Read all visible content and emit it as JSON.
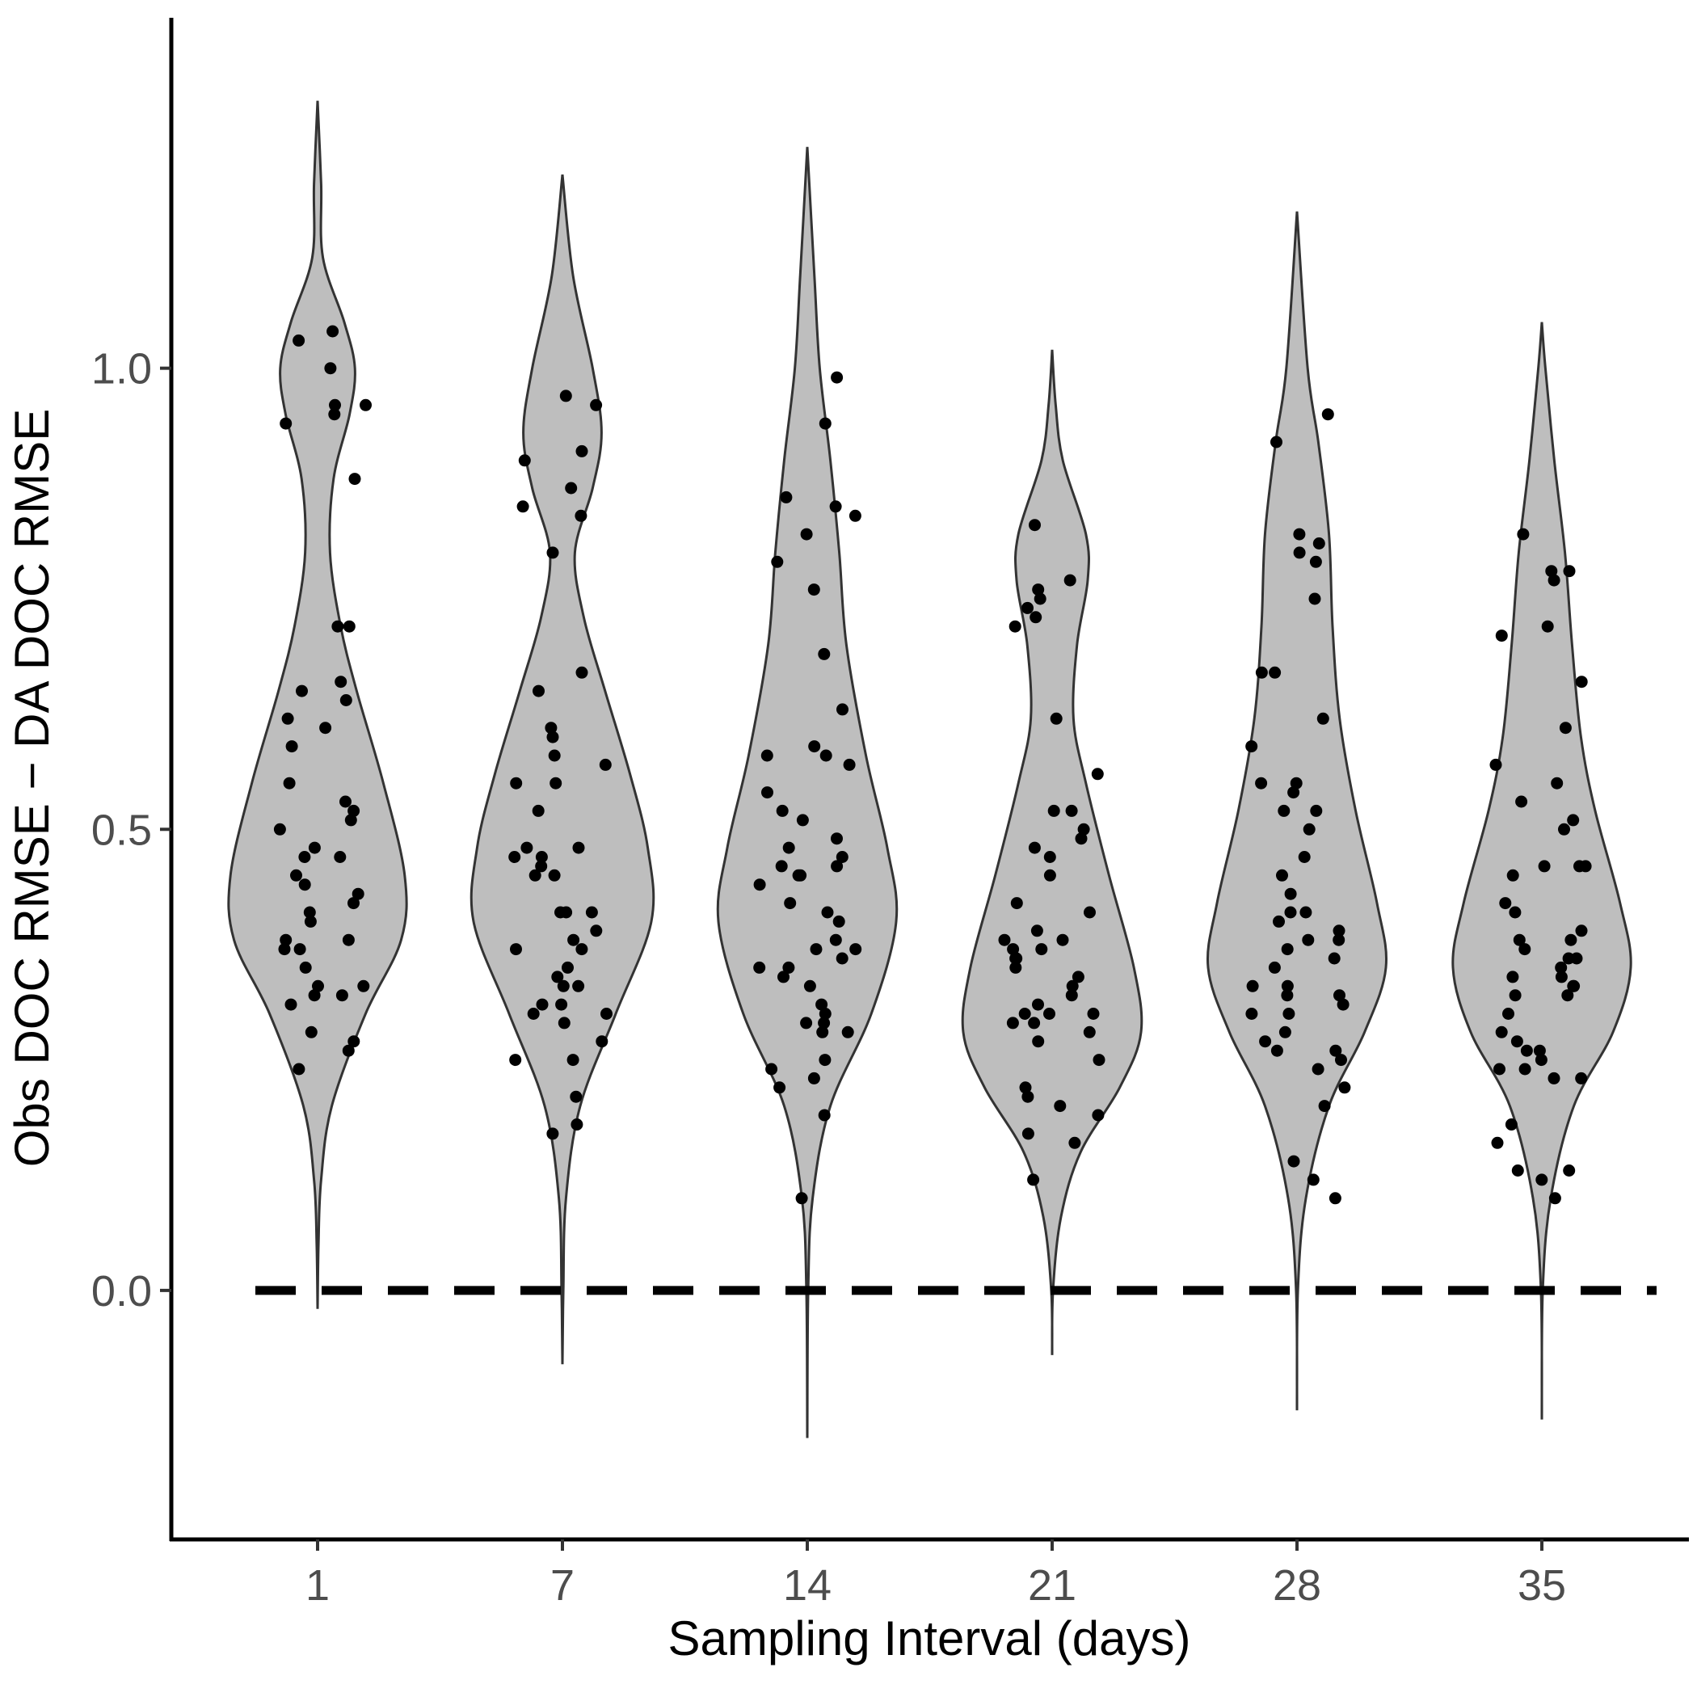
{
  "chart_data": {
    "type": "violin",
    "xlabel": "Sampling Interval (days)",
    "ylabel": "Obs DOC RMSE − DA DOC RMSE",
    "categories": [
      "1",
      "7",
      "14",
      "21",
      "28",
      "35"
    ],
    "ylim": [
      -0.27,
      1.38
    ],
    "yticks": [
      0.0,
      0.5,
      1.0
    ],
    "ytick_labels": [
      "0.0",
      "0.5",
      "1.0"
    ],
    "reference_line": {
      "y": 0.0,
      "style": "dashed"
    },
    "grid": false,
    "legend": "none",
    "colors": {
      "violin_fill": "#bebebe",
      "violin_stroke": "#333333",
      "points": "#000000",
      "axis": "#000000"
    },
    "violins": [
      {
        "category": "1",
        "min": -0.02,
        "max": 1.29,
        "profile": [
          [
            -0.02,
            0.0
          ],
          [
            0.05,
            0.005
          ],
          [
            0.12,
            0.02
          ],
          [
            0.2,
            0.08
          ],
          [
            0.3,
            0.27
          ],
          [
            0.38,
            0.47
          ],
          [
            0.45,
            0.49
          ],
          [
            0.55,
            0.37
          ],
          [
            0.65,
            0.22
          ],
          [
            0.72,
            0.13
          ],
          [
            0.8,
            0.07
          ],
          [
            0.88,
            0.09
          ],
          [
            0.95,
            0.18
          ],
          [
            1.0,
            0.21
          ],
          [
            1.05,
            0.15
          ],
          [
            1.12,
            0.03
          ],
          [
            1.2,
            0.02
          ],
          [
            1.29,
            0.0
          ]
        ]
      },
      {
        "category": "7",
        "min": -0.08,
        "max": 1.21,
        "profile": [
          [
            -0.08,
            0.0
          ],
          [
            0.0,
            0.005
          ],
          [
            0.1,
            0.02
          ],
          [
            0.2,
            0.1
          ],
          [
            0.3,
            0.3
          ],
          [
            0.4,
            0.5
          ],
          [
            0.48,
            0.48
          ],
          [
            0.56,
            0.38
          ],
          [
            0.65,
            0.24
          ],
          [
            0.73,
            0.12
          ],
          [
            0.8,
            0.07
          ],
          [
            0.87,
            0.17
          ],
          [
            0.93,
            0.22
          ],
          [
            1.0,
            0.17
          ],
          [
            1.1,
            0.06
          ],
          [
            1.21,
            0.0
          ]
        ]
      },
      {
        "category": "14",
        "min": -0.16,
        "max": 1.24,
        "profile": [
          [
            -0.16,
            0.0
          ],
          [
            0.0,
            0.005
          ],
          [
            0.1,
            0.03
          ],
          [
            0.2,
            0.13
          ],
          [
            0.3,
            0.36
          ],
          [
            0.4,
            0.5
          ],
          [
            0.48,
            0.45
          ],
          [
            0.58,
            0.33
          ],
          [
            0.7,
            0.22
          ],
          [
            0.8,
            0.18
          ],
          [
            0.9,
            0.13
          ],
          [
            1.0,
            0.07
          ],
          [
            1.1,
            0.04
          ],
          [
            1.24,
            0.0
          ]
        ]
      },
      {
        "category": "21",
        "min": -0.07,
        "max": 1.02,
        "profile": [
          [
            -0.07,
            0.0
          ],
          [
            0.0,
            0.005
          ],
          [
            0.08,
            0.05
          ],
          [
            0.15,
            0.16
          ],
          [
            0.22,
            0.38
          ],
          [
            0.28,
            0.5
          ],
          [
            0.35,
            0.46
          ],
          [
            0.45,
            0.32
          ],
          [
            0.55,
            0.19
          ],
          [
            0.62,
            0.12
          ],
          [
            0.7,
            0.14
          ],
          [
            0.77,
            0.2
          ],
          [
            0.82,
            0.19
          ],
          [
            0.9,
            0.06
          ],
          [
            0.96,
            0.02
          ],
          [
            1.02,
            0.0
          ]
        ]
      },
      {
        "category": "28",
        "min": -0.13,
        "max": 1.17,
        "profile": [
          [
            -0.13,
            0.0
          ],
          [
            0.0,
            0.005
          ],
          [
            0.1,
            0.05
          ],
          [
            0.2,
            0.18
          ],
          [
            0.28,
            0.38
          ],
          [
            0.35,
            0.5
          ],
          [
            0.42,
            0.45
          ],
          [
            0.52,
            0.33
          ],
          [
            0.62,
            0.24
          ],
          [
            0.72,
            0.2
          ],
          [
            0.82,
            0.18
          ],
          [
            0.92,
            0.12
          ],
          [
            1.0,
            0.06
          ],
          [
            1.17,
            0.0
          ]
        ]
      },
      {
        "category": "35",
        "min": -0.14,
        "max": 1.05,
        "profile": [
          [
            -0.14,
            0.0
          ],
          [
            0.0,
            0.005
          ],
          [
            0.1,
            0.05
          ],
          [
            0.2,
            0.18
          ],
          [
            0.28,
            0.4
          ],
          [
            0.35,
            0.5
          ],
          [
            0.42,
            0.44
          ],
          [
            0.52,
            0.3
          ],
          [
            0.6,
            0.22
          ],
          [
            0.7,
            0.17
          ],
          [
            0.8,
            0.13
          ],
          [
            0.9,
            0.07
          ],
          [
            1.0,
            0.02
          ],
          [
            1.05,
            0.0
          ]
        ]
      }
    ],
    "points": [
      {
        "category": "1",
        "values": [
          1.04,
          1.03,
          1.0,
          0.96,
          0.96,
          0.95,
          0.94,
          0.88,
          0.72,
          0.72,
          0.66,
          0.65,
          0.64,
          0.62,
          0.61,
          0.59,
          0.55,
          0.53,
          0.52,
          0.51,
          0.5,
          0.48,
          0.47,
          0.47,
          0.45,
          0.44,
          0.43,
          0.42,
          0.41,
          0.4,
          0.38,
          0.38,
          0.37,
          0.37,
          0.35,
          0.33,
          0.33,
          0.32,
          0.32,
          0.31,
          0.28,
          0.27,
          0.26,
          0.24
        ]
      },
      {
        "category": "7",
        "values": [
          0.97,
          0.96,
          0.91,
          0.9,
          0.87,
          0.85,
          0.84,
          0.8,
          0.67,
          0.65,
          0.61,
          0.6,
          0.58,
          0.57,
          0.55,
          0.55,
          0.52,
          0.48,
          0.48,
          0.47,
          0.47,
          0.46,
          0.45,
          0.45,
          0.41,
          0.41,
          0.41,
          0.39,
          0.38,
          0.37,
          0.37,
          0.35,
          0.34,
          0.33,
          0.33,
          0.31,
          0.31,
          0.3,
          0.3,
          0.29,
          0.27,
          0.25,
          0.25,
          0.21,
          0.18,
          0.17
        ]
      },
      {
        "category": "14",
        "values": [
          0.99,
          0.94,
          0.86,
          0.85,
          0.84,
          0.82,
          0.79,
          0.76,
          0.69,
          0.63,
          0.59,
          0.58,
          0.58,
          0.57,
          0.54,
          0.52,
          0.51,
          0.49,
          0.48,
          0.47,
          0.46,
          0.46,
          0.45,
          0.45,
          0.44,
          0.42,
          0.41,
          0.4,
          0.38,
          0.37,
          0.37,
          0.36,
          0.35,
          0.35,
          0.34,
          0.33,
          0.31,
          0.3,
          0.29,
          0.29,
          0.28,
          0.28,
          0.25,
          0.24,
          0.23,
          0.22,
          0.19,
          0.1
        ]
      },
      {
        "category": "21",
        "values": [
          0.83,
          0.77,
          0.76,
          0.75,
          0.74,
          0.73,
          0.72,
          0.62,
          0.56,
          0.52,
          0.52,
          0.5,
          0.49,
          0.48,
          0.47,
          0.45,
          0.42,
          0.41,
          0.39,
          0.38,
          0.38,
          0.37,
          0.37,
          0.36,
          0.36,
          0.35,
          0.34,
          0.33,
          0.32,
          0.31,
          0.3,
          0.3,
          0.3,
          0.29,
          0.29,
          0.28,
          0.27,
          0.25,
          0.22,
          0.21,
          0.2,
          0.19,
          0.17,
          0.16,
          0.12
        ]
      },
      {
        "category": "28",
        "values": [
          0.95,
          0.92,
          0.82,
          0.81,
          0.8,
          0.79,
          0.75,
          0.67,
          0.67,
          0.62,
          0.59,
          0.55,
          0.55,
          0.54,
          0.52,
          0.52,
          0.5,
          0.47,
          0.45,
          0.43,
          0.41,
          0.41,
          0.4,
          0.39,
          0.38,
          0.38,
          0.37,
          0.36,
          0.35,
          0.33,
          0.33,
          0.32,
          0.32,
          0.31,
          0.3,
          0.3,
          0.28,
          0.27,
          0.26,
          0.26,
          0.25,
          0.24,
          0.22,
          0.2,
          0.14,
          0.12,
          0.1
        ]
      },
      {
        "category": "35",
        "values": [
          0.82,
          0.78,
          0.78,
          0.77,
          0.72,
          0.71,
          0.66,
          0.61,
          0.57,
          0.55,
          0.53,
          0.51,
          0.5,
          0.46,
          0.46,
          0.46,
          0.45,
          0.42,
          0.41,
          0.39,
          0.38,
          0.38,
          0.37,
          0.36,
          0.36,
          0.35,
          0.34,
          0.34,
          0.33,
          0.33,
          0.32,
          0.32,
          0.3,
          0.28,
          0.27,
          0.26,
          0.26,
          0.25,
          0.24,
          0.24,
          0.23,
          0.23,
          0.18,
          0.16,
          0.13,
          0.13,
          0.12,
          0.1
        ]
      }
    ]
  }
}
